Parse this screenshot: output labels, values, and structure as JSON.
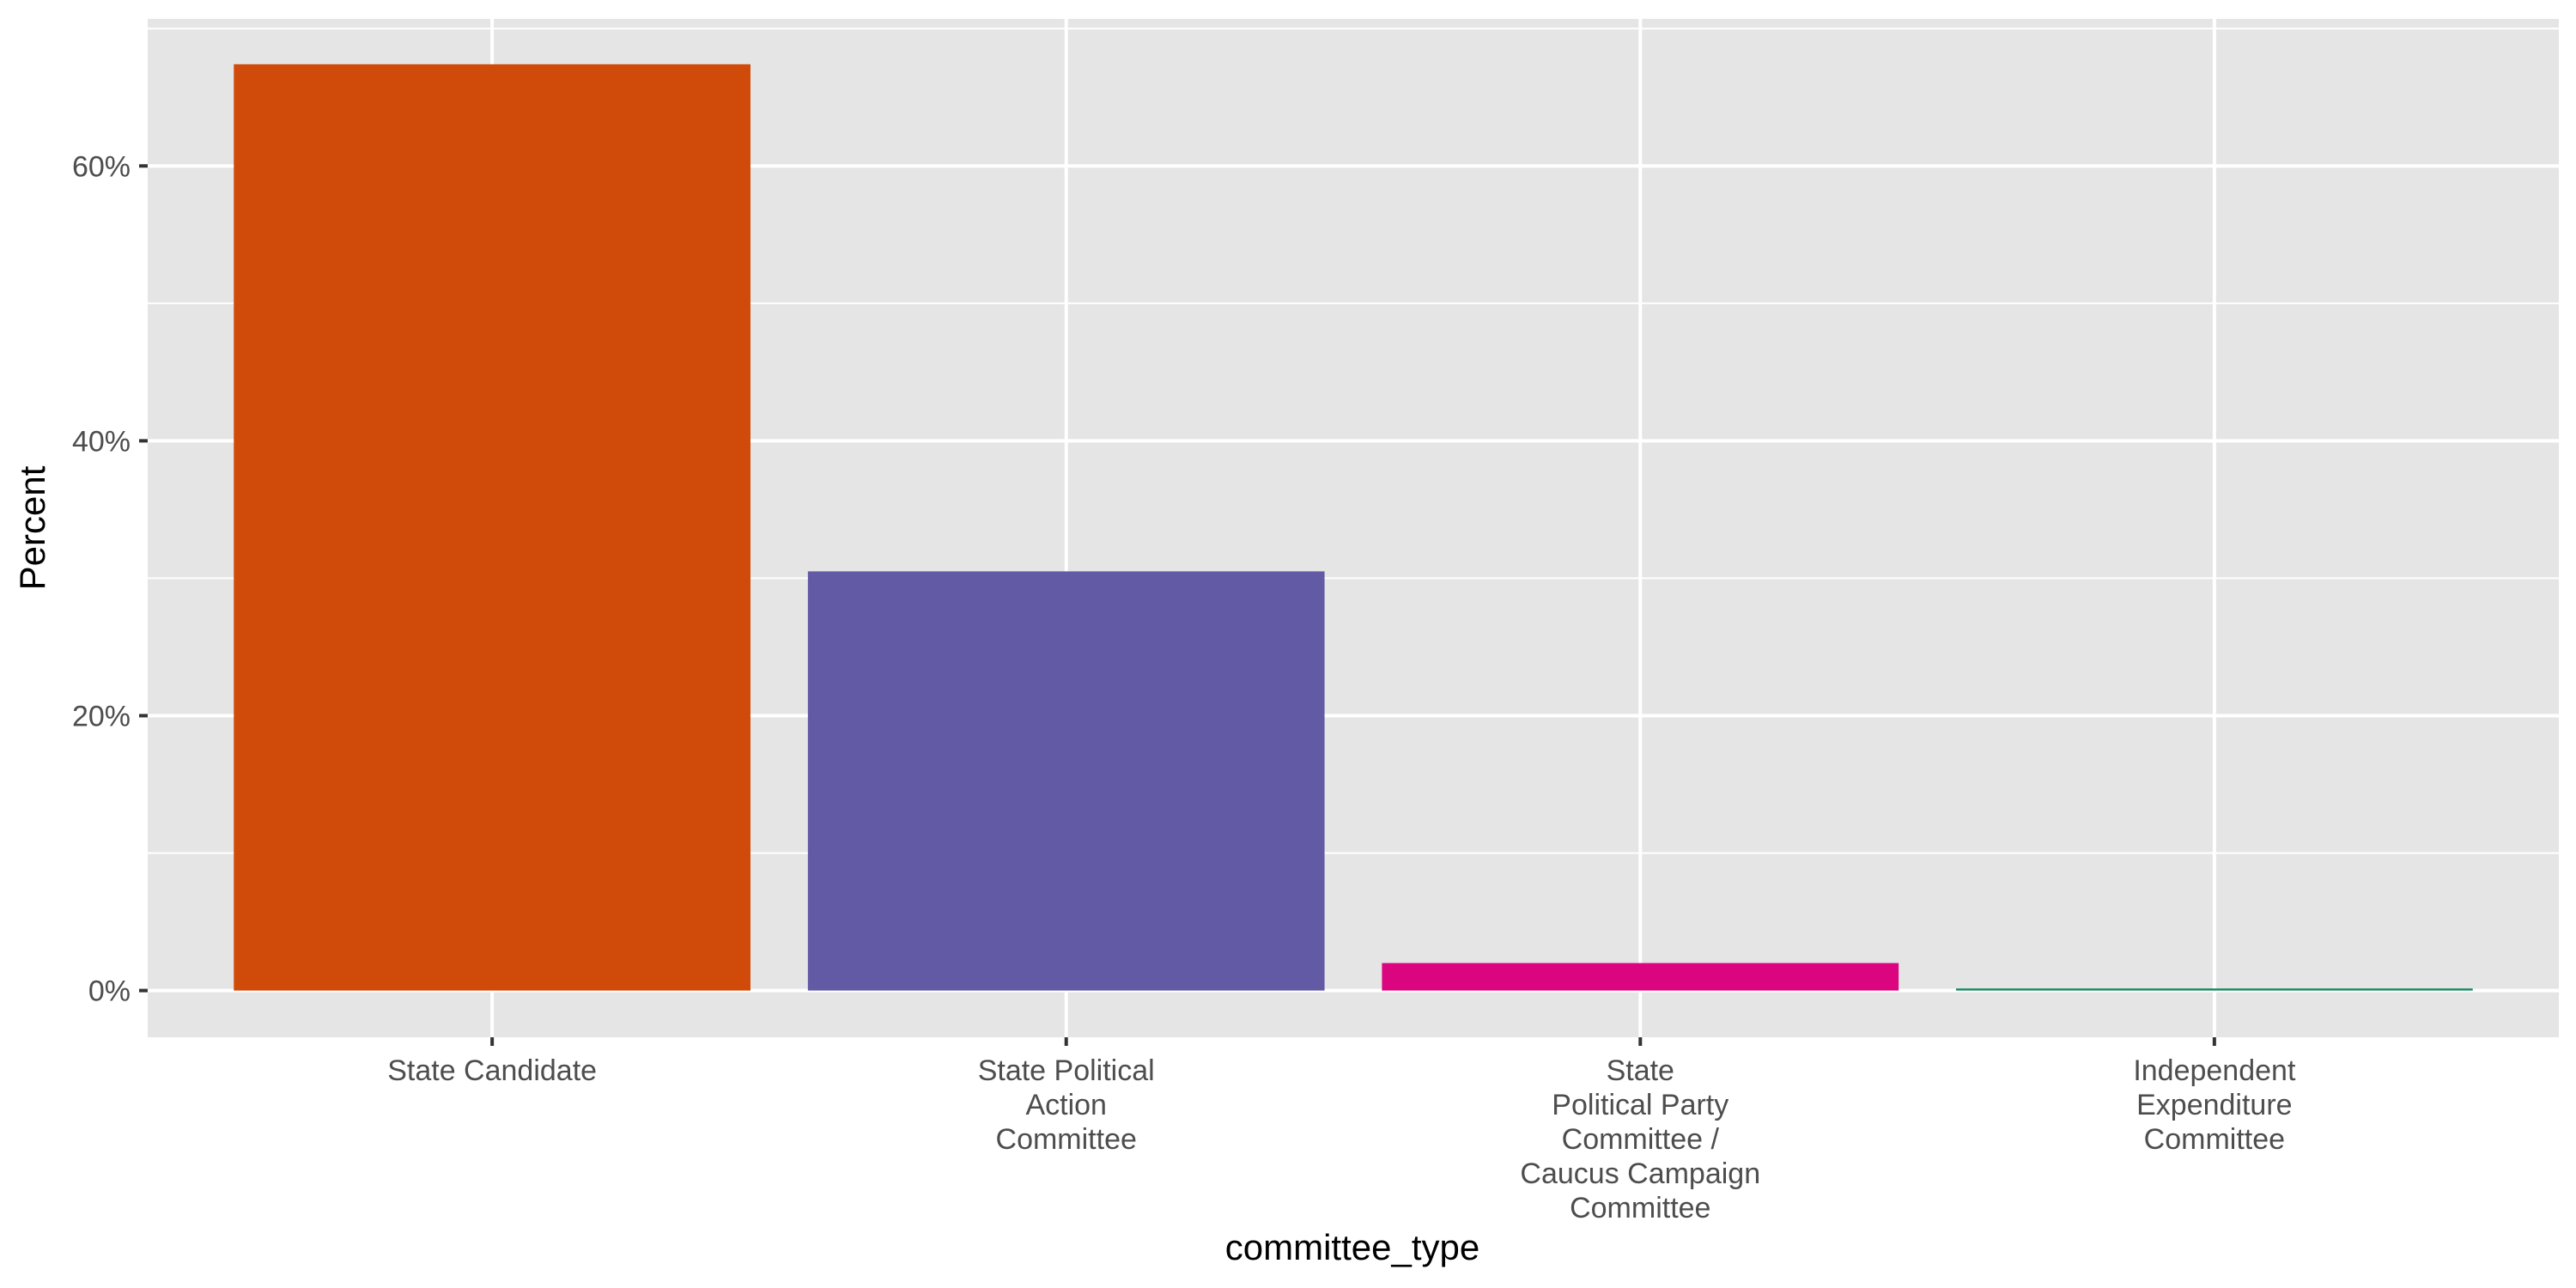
{
  "chart_data": {
    "type": "bar",
    "xlabel": "committee_type",
    "ylabel": "Percent",
    "categories": [
      "State Candidate",
      "State Political\nAction\nCommittee",
      "State\nPolitical Party\nCommittee /\nCaucus Campaign\nCommittee",
      "Independent\nExpenditure\nCommittee"
    ],
    "values": [
      67.4,
      30.5,
      2.0,
      0.15
    ],
    "colors": [
      "#D04A0A",
      "#625AA5",
      "#DC0580",
      "#138A5E"
    ],
    "ylim": [
      -3.4,
      70.7
    ],
    "y_ticks": [
      0,
      20,
      40,
      60
    ],
    "y_tick_labels": [
      "0%",
      "20%",
      "40%",
      "60%"
    ],
    "y_minor_ticks": [
      10,
      30,
      50,
      70
    ],
    "grid": true,
    "panel_background": "#E5E5E5",
    "grid_color": "#FFFFFF",
    "legend": "none"
  }
}
